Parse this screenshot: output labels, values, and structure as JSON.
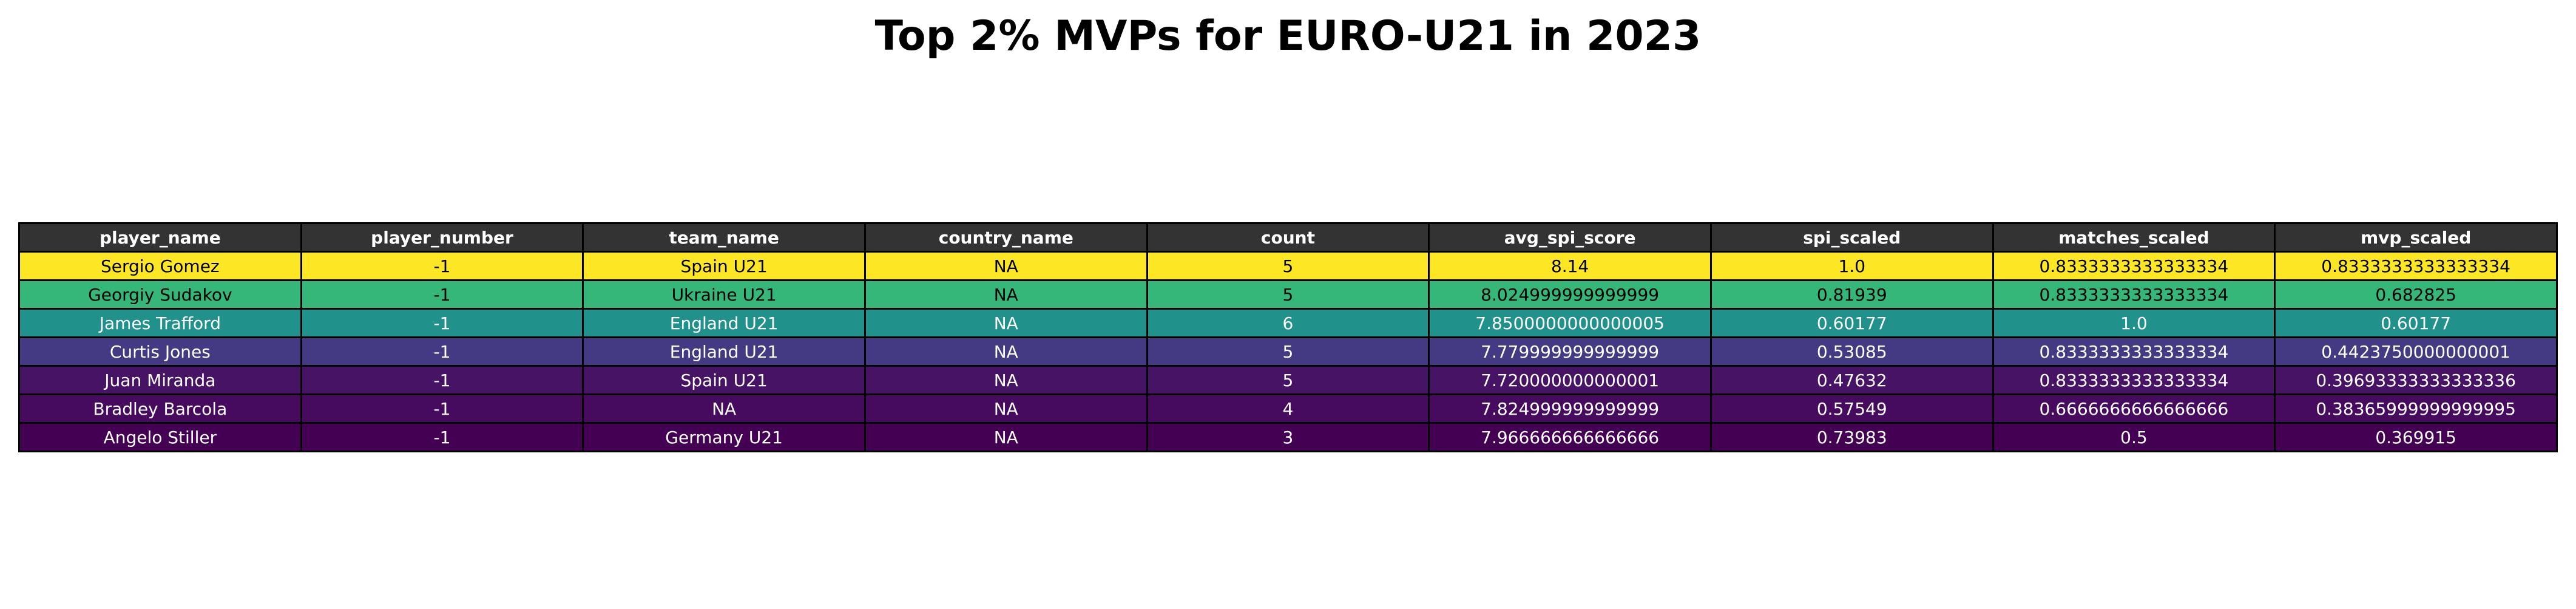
{
  "title": "Top 2% MVPs for EURO-U21 in 2023",
  "chart_data": {
    "type": "table",
    "title": "Top 2% MVPs for EURO-U21 in 2023",
    "columns": [
      "player_name",
      "player_number",
      "team_name",
      "country_name",
      "count",
      "avg_spi_score",
      "spi_scaled",
      "matches_scaled",
      "mvp_scaled"
    ],
    "header_bg": "#333333",
    "header_fg": "#ffffff",
    "rows": [
      {
        "cells": [
          "Sergio Gomez",
          "-1",
          "Spain U21",
          "NA",
          "5",
          "8.14",
          "1.0",
          "0.8333333333333334",
          "0.8333333333333334"
        ],
        "bg": "#fde725",
        "fg": "#000000"
      },
      {
        "cells": [
          "Georgiy Sudakov",
          "-1",
          "Ukraine U21",
          "NA",
          "5",
          "8.024999999999999",
          "0.81939",
          "0.8333333333333334",
          "0.682825"
        ],
        "bg": "#35b779",
        "fg": "#000000"
      },
      {
        "cells": [
          "James Trafford",
          "-1",
          "England U21",
          "NA",
          "6",
          "7.8500000000000005",
          "0.60177",
          "1.0",
          "0.60177"
        ],
        "bg": "#21918c",
        "fg": "#ffffff"
      },
      {
        "cells": [
          "Curtis Jones",
          "-1",
          "England U21",
          "NA",
          "5",
          "7.779999999999999",
          "0.53085",
          "0.8333333333333334",
          "0.4423750000000001"
        ],
        "bg": "#443983",
        "fg": "#ffffff"
      },
      {
        "cells": [
          "Juan Miranda",
          "-1",
          "Spain U21",
          "NA",
          "5",
          "7.720000000000001",
          "0.47632",
          "0.8333333333333334",
          "0.39693333333333336"
        ],
        "bg": "#471365",
        "fg": "#ffffff"
      },
      {
        "cells": [
          "Bradley Barcola",
          "-1",
          "NA",
          "NA",
          "4",
          "7.824999999999999",
          "0.57549",
          "0.6666666666666666",
          "0.38365999999999995"
        ],
        "bg": "#460b5e",
        "fg": "#ffffff"
      },
      {
        "cells": [
          "Angelo Stiller",
          "-1",
          "Germany U21",
          "NA",
          "3",
          "7.966666666666666",
          "0.73983",
          "0.5",
          "0.369915"
        ],
        "bg": "#440154",
        "fg": "#ffffff"
      }
    ]
  }
}
